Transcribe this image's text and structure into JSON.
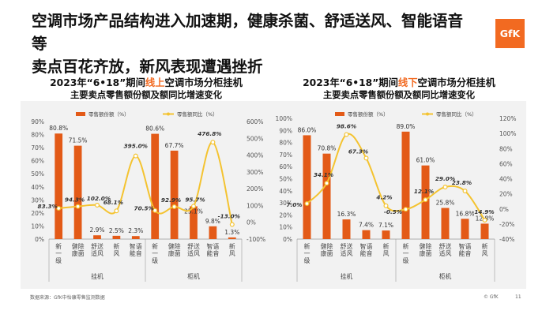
{
  "slide": {
    "title_line1": "空调市场产品结构进入加速期，健康杀菌、舒适送风、智能语音等",
    "title_line2": "卖点百花齐放，新风表现遭遇挫折",
    "logo_text": "GfK",
    "source": "数据来源：GfK中怡康零售监测数据",
    "copyright": "© GfK",
    "page_number": "11",
    "accent_color": "#f26a21"
  },
  "charts": [
    {
      "title_pre": "2023年“6•18”期间",
      "title_hl": "线上",
      "title_post": "空调市场分柜挂机",
      "subtitle": "主要卖点零售额份额及额同比增速变化"
    },
    {
      "title_pre": "2023年“6•18”期间",
      "title_hl": "线下",
      "title_post": "空调市场分柜挂机",
      "subtitle": "主要卖点零售额份额及额同比增速变化"
    }
  ],
  "chart_data": [
    {
      "type": "bar",
      "legend": [
        "零售额份额（%）",
        "零售额同比（%）"
      ],
      "categories": [
        "新一级",
        "健康除菌",
        "舒适送风",
        "新风",
        "智能语音",
        "新一级",
        "健康除菌",
        "舒适送风",
        "智能语音",
        "新风"
      ],
      "groups": [
        {
          "label": "挂机",
          "span": [
            0,
            4
          ]
        },
        {
          "label": "柜机",
          "span": [
            5,
            9
          ]
        }
      ],
      "series": [
        {
          "name": "零售额份额（%）",
          "axis": "left",
          "values": [
            80.8,
            71.5,
            2.9,
            2.5,
            2.3,
            80.6,
            67.7,
            25.1,
            9.8,
            1.3
          ],
          "labels": [
            "80.8%",
            "71.5%",
            "2.9%",
            "2.5%",
            "2.3%",
            "80.6%",
            "67.7%",
            "25.1%",
            "9.8%",
            "1.3%"
          ]
        },
        {
          "name": "零售额同比（%）",
          "axis": "right",
          "values": [
            83.3,
            94.3,
            102.0,
            68.1,
            395.0,
            70.5,
            92.9,
            95.7,
            476.8,
            -13.0
          ],
          "labels": [
            "83.3%",
            "94.3%",
            "102.0%",
            "68.1%",
            "395.0%",
            "70.5%",
            "92.9%",
            "95.7%",
            "476.8%",
            "-13.0%"
          ]
        }
      ],
      "ylim_left": [
        0,
        90
      ],
      "yticks_left": [
        0,
        10,
        20,
        30,
        40,
        50,
        60,
        70,
        80,
        90
      ],
      "ylim_right": [
        -100,
        600
      ],
      "yticks_right": [
        -100,
        0,
        100,
        200,
        300,
        400,
        500,
        600
      ],
      "colors": {
        "bar": "#e35a17",
        "line": "#f4c330"
      }
    },
    {
      "type": "bar",
      "legend": [
        "零售额份额（%）",
        "零售额同比（%）"
      ],
      "categories": [
        "新一级",
        "健康除菌",
        "舒适送风",
        "智能语音",
        "新风",
        "新一级",
        "健康除菌",
        "舒适送风",
        "智能语音",
        "新风"
      ],
      "groups": [
        {
          "label": "挂机",
          "span": [
            0,
            4
          ]
        },
        {
          "label": "柜机",
          "span": [
            5,
            9
          ]
        }
      ],
      "series": [
        {
          "name": "零售额份额（%）",
          "axis": "left",
          "values": [
            86.0,
            70.8,
            16.3,
            7.4,
            7.1,
            89.0,
            61.0,
            25.8,
            16.8,
            12.8
          ],
          "labels": [
            "86.0%",
            "70.8%",
            "16.3%",
            "7.4%",
            "7.1%",
            "89.0%",
            "61.0%",
            "25.8%",
            "16.8%",
            "12.8%"
          ]
        },
        {
          "name": "零售额同比（%）",
          "axis": "right",
          "values": [
            7.0,
            34.1,
            98.6,
            67.3,
            4.2,
            -0.5,
            12.1,
            29.0,
            23.8,
            -14.9
          ],
          "labels": [
            "7.0%",
            "34.1%",
            "98.6%",
            "67.3%",
            "4.2%",
            "-0.5%",
            "12.1%",
            "29.0%",
            "23.8%",
            "-14.9%"
          ]
        }
      ],
      "ylim_left": [
        0,
        100
      ],
      "yticks_left": [
        0,
        10,
        20,
        30,
        40,
        50,
        60,
        70,
        80,
        90,
        100
      ],
      "ylim_right": [
        -40,
        120
      ],
      "yticks_right": [
        -40,
        -20,
        0,
        20,
        40,
        60,
        80,
        100,
        120
      ],
      "colors": {
        "bar": "#e35a17",
        "line": "#f4c330"
      }
    }
  ]
}
